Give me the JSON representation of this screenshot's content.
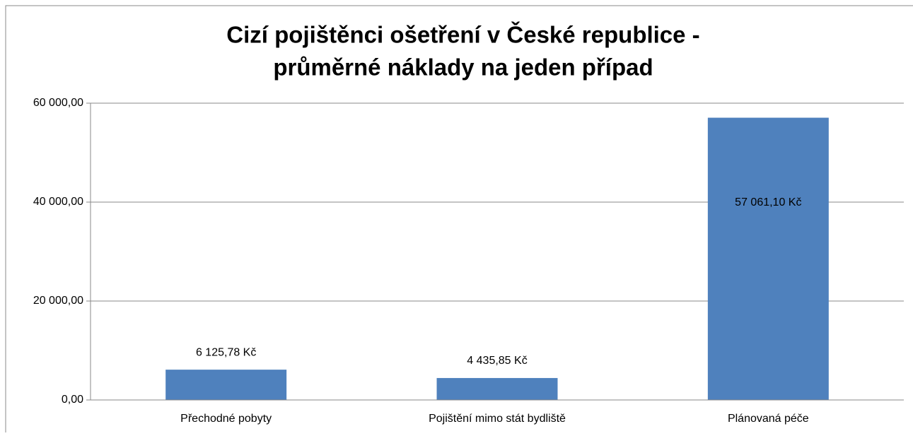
{
  "chart_data": {
    "type": "bar",
    "title": [
      "Cizí pojištěnci ošetření v České republice -",
      "průměrné náklady na jeden případ"
    ],
    "categories": [
      "Přechodné pobyty",
      "Pojištění mimo stát bydliště",
      "Plánovaná péče"
    ],
    "values": [
      6125.78,
      4435.85,
      57061.1
    ],
    "value_labels": [
      "6 125,78 Kč",
      "4 435,85 Kč",
      "57 061,10 Kč"
    ],
    "color": "#4f81bd",
    "ylim": [
      0,
      60000
    ],
    "yticks": [
      {
        "value": 0,
        "label": "0,00"
      },
      {
        "value": 20000,
        "label": "20 000,00"
      },
      {
        "value": 40000,
        "label": "40 000,00"
      },
      {
        "value": 60000,
        "label": "60 000,00"
      }
    ],
    "grid": true
  }
}
